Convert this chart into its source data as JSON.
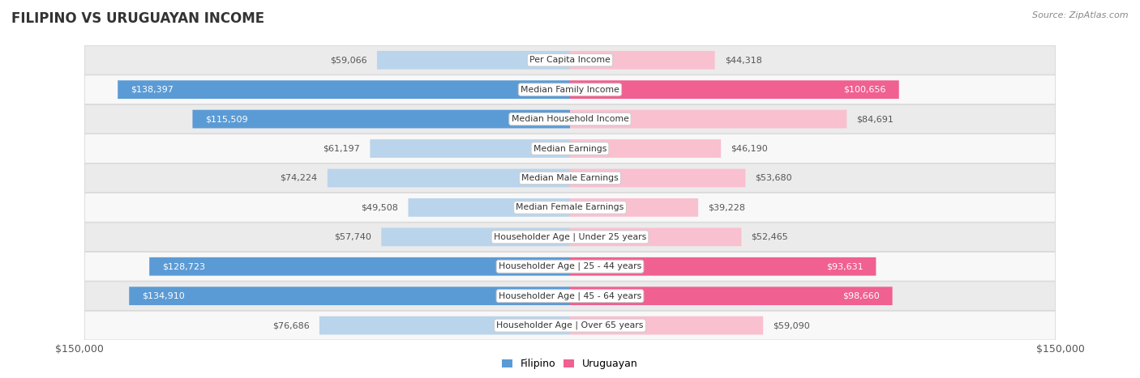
{
  "title": "FILIPINO VS URUGUAYAN INCOME",
  "source": "Source: ZipAtlas.com",
  "categories": [
    "Per Capita Income",
    "Median Family Income",
    "Median Household Income",
    "Median Earnings",
    "Median Male Earnings",
    "Median Female Earnings",
    "Householder Age | Under 25 years",
    "Householder Age | 25 - 44 years",
    "Householder Age | 45 - 64 years",
    "Householder Age | Over 65 years"
  ],
  "filipino_values": [
    59066,
    138397,
    115509,
    61197,
    74224,
    49508,
    57740,
    128723,
    134910,
    76686
  ],
  "uruguayan_values": [
    44318,
    100656,
    84691,
    46190,
    53680,
    39228,
    52465,
    93631,
    98660,
    59090
  ],
  "max_value": 150000,
  "filipino_color_light": "#bad4eb",
  "filipino_color_dark": "#5b9bd5",
  "uruguayan_color_light": "#f9c0d0",
  "uruguayan_color_dark": "#f06090",
  "row_bg_odd": "#ebebeb",
  "row_bg_even": "#f8f8f8",
  "label_inside_color": "#ffffff",
  "label_outside_color": "#555555",
  "title_color": "#333333",
  "source_color": "#888888",
  "legend_filipino": "Filipino",
  "legend_uruguayan": "Uruguayan",
  "threshold_large": 90000,
  "fig_width": 14.06,
  "fig_height": 4.67
}
